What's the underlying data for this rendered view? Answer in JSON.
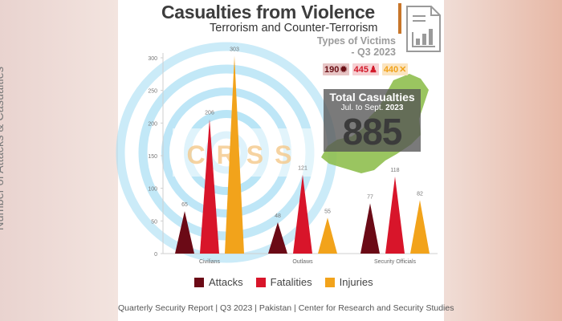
{
  "header": {
    "title": "Casualties from Violence",
    "subtitle": "Terrorism and Counter-Terrorism",
    "types_of_victims": "Types of Victims",
    "quarter": "- Q3 2023"
  },
  "badges": [
    {
      "value": "190",
      "icon": "gear-icon",
      "caption": "Attacks"
    },
    {
      "value": "445",
      "icon": "figure-icon",
      "caption": "Fatalities"
    },
    {
      "value": "440",
      "icon": "cross-icon",
      "caption": "Injuries"
    }
  ],
  "total": {
    "label": "Total Casualties",
    "date_prefix": "Jul. to Sept.",
    "date_year": "2023",
    "value": "885"
  },
  "watermark": "CRSS",
  "footer": "Quarterly Security Report | Q3 2023 | Pakistan | Center for Research and Security Studies",
  "colors": {
    "attacks": "#6b0a16",
    "fatalities": "#d8152a",
    "injuries": "#f2a31b",
    "watermark_rings": "#a8def4",
    "accent_bar": "#c8762a",
    "map": "#8fbf4f"
  },
  "chart_data": {
    "type": "bar",
    "categories": [
      "Civilians",
      "Outlaws",
      "Security Officials"
    ],
    "series": [
      {
        "name": "Attacks",
        "values": [
          65,
          48,
          77
        ]
      },
      {
        "name": "Fatalities",
        "values": [
          206,
          121,
          118
        ]
      },
      {
        "name": "Injuries",
        "values": [
          303,
          55,
          82
        ]
      }
    ],
    "ylabel": "Number of Attacks & Casualties",
    "xlabel": "",
    "ylim": [
      0,
      300
    ],
    "yticks": [
      0,
      50,
      100,
      150,
      200,
      250,
      300
    ],
    "grid": false,
    "legend": "bottom",
    "mark_shape": "triangle"
  }
}
